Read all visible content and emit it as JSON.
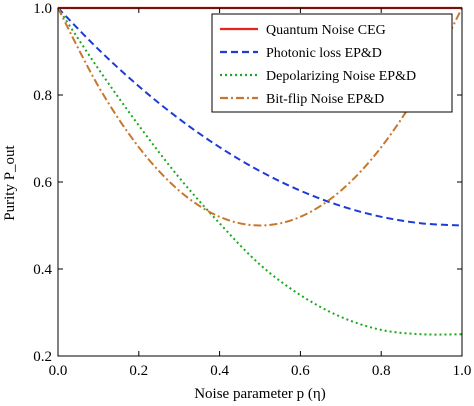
{
  "chart_data": {
    "type": "line",
    "xlabel": "Noise parameter p (η)",
    "ylabel": "Purity P_out",
    "xlim": [
      0,
      1
    ],
    "ylim": [
      0.2,
      1.0
    ],
    "xticks": [
      "0.0",
      "0.2",
      "0.4",
      "0.6",
      "0.8",
      "1.0"
    ],
    "yticks": [
      "0.2",
      "0.4",
      "0.6",
      "0.8",
      "1.0"
    ],
    "grid": false,
    "legend_position": "top-right",
    "series": [
      {
        "name": "Quantum Noise CEG",
        "color": "#e8231b",
        "style": "solid",
        "x": [
          0,
          0.25,
          0.5,
          0.75,
          1.0
        ],
        "y": [
          1.0,
          1.0,
          1.0,
          1.0,
          1.0
        ]
      },
      {
        "name": "Photonic loss EP&D",
        "color": "#1f3bd6",
        "style": "dashed",
        "x": [
          0,
          0.1,
          0.2,
          0.3,
          0.4,
          0.5,
          0.6,
          0.7,
          0.8,
          0.9,
          1.0
        ],
        "y": [
          1.0,
          0.905,
          0.82,
          0.745,
          0.68,
          0.625,
          0.58,
          0.545,
          0.52,
          0.505,
          0.5
        ]
      },
      {
        "name": "Depolarizing Noise EP&D",
        "color": "#1da81d",
        "style": "dotted",
        "x": [
          0,
          0.1,
          0.2,
          0.3,
          0.4,
          0.5,
          0.6,
          0.7,
          0.8,
          0.9,
          1.0
        ],
        "y": [
          1.0,
          0.86,
          0.73,
          0.61,
          0.505,
          0.41,
          0.34,
          0.29,
          0.26,
          0.25,
          0.25
        ]
      },
      {
        "name": "Bit-flip Noise EP&D",
        "color": "#c8772e",
        "style": "dashdot",
        "x": [
          0,
          0.1,
          0.2,
          0.3,
          0.4,
          0.5,
          0.6,
          0.7,
          0.8,
          0.9,
          1.0
        ],
        "y": [
          1.0,
          0.82,
          0.68,
          0.58,
          0.52,
          0.5,
          0.52,
          0.58,
          0.68,
          0.82,
          1.0
        ]
      }
    ]
  }
}
